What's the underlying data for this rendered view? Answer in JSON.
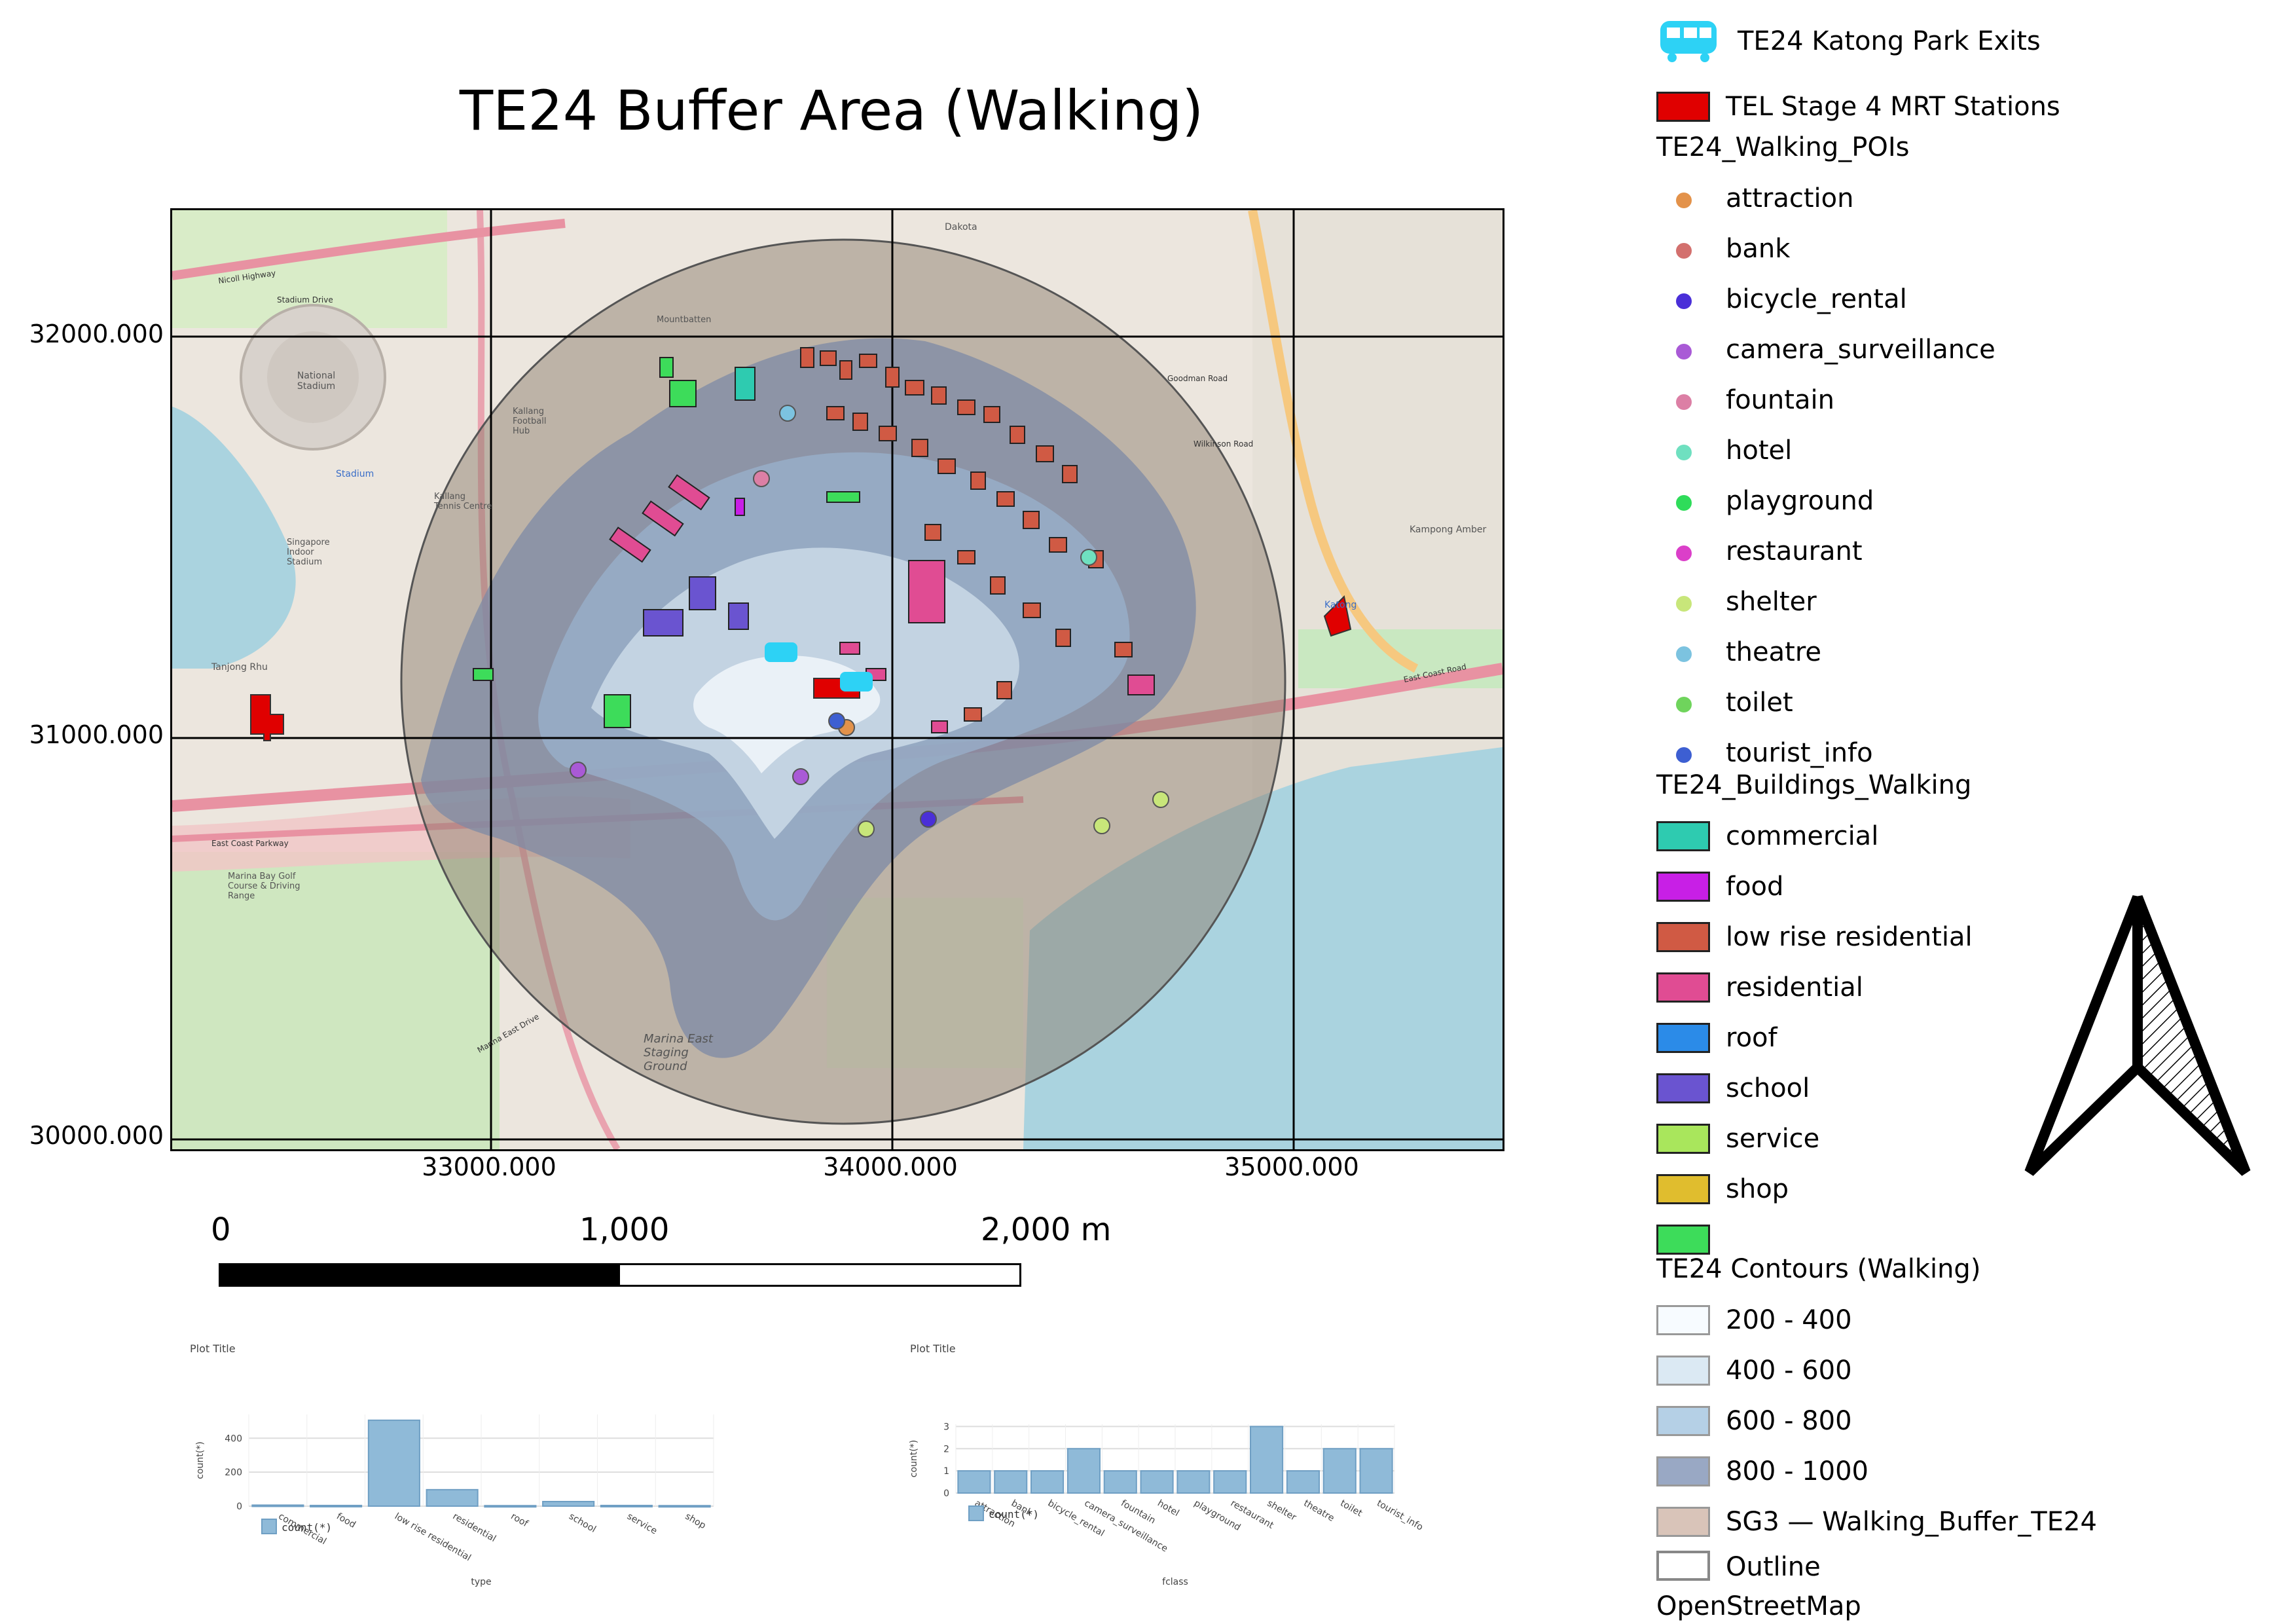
{
  "title": "TE24 Buffer Area (Walking)",
  "map": {
    "y_ticks": [
      "32000.000",
      "31000.000",
      "30000.000"
    ],
    "x_ticks": [
      "33000.000",
      "34000.000",
      "35000.000"
    ],
    "place_labels": {
      "national_stadium": "National Stadium",
      "stadium": "Stadium",
      "singapore_indoor_stadium": "Singapore Indoor Stadium",
      "kallang_football_hub": "Kallang Football Hub",
      "kallang_tennis_centre": "Kallang Tennis Centre",
      "marina_bay_golf": "Marina Bay Golf Course & Driving Range",
      "marina_east_staging": "Marina East Staging Ground",
      "mountbatten": "Mountbatten",
      "dakota": "Dakota",
      "katong": "Katong",
      "kampong_amber": "Kampong Amber",
      "tanjong_rhu": "Tanjong Rhu",
      "nicoll_highway": "Nicoll Highway",
      "stadium_drive": "Stadium Drive",
      "east_coast_parkway": "East Coast Parkway",
      "marina_east_drive": "Marina East Drive",
      "east_coast_road": "East Coast Road",
      "goodman_road": "Goodman Road",
      "wilkinson_road": "Wilkinson Road"
    }
  },
  "scale_bar": {
    "labels": [
      "0",
      "1,000",
      "2,000 m"
    ]
  },
  "plot_left": {
    "title": "Plot Title",
    "ylabel": "count(*)",
    "xlabel": "type",
    "legend": "count(*)",
    "color": "#8fbad8"
  },
  "plot_right": {
    "title": "Plot Title",
    "ylabel": "count(*)",
    "xlabel": "fclass",
    "legend": "count(*)",
    "color": "#8fbad8"
  },
  "chart_data": [
    {
      "type": "bar",
      "title": "Plot Title",
      "xlabel": "type",
      "ylabel": "count(*)",
      "categories": [
        "commercial",
        "food",
        "low rise residential",
        "residential",
        "roof",
        "school",
        "service",
        "shop"
      ],
      "values": [
        6,
        4,
        506,
        97,
        3,
        27,
        4,
        3
      ],
      "y_ticks": [
        0,
        200,
        400
      ],
      "ylim": [
        0,
        540
      ],
      "legend": "count(*)"
    },
    {
      "type": "bar",
      "title": "Plot Title",
      "xlabel": "fclass",
      "ylabel": "count(*)",
      "categories": [
        "attraction",
        "bank",
        "bicycle_rental",
        "camera_surveillance",
        "fountain",
        "hotel",
        "playground",
        "restaurant",
        "shelter",
        "theatre",
        "toilet",
        "tourist_info"
      ],
      "values": [
        1,
        1,
        1,
        2,
        1,
        1,
        1,
        1,
        3,
        1,
        2,
        2
      ],
      "y_ticks": [
        0,
        1,
        2,
        3
      ],
      "ylim": [
        0,
        3.1
      ],
      "legend": "count(*)"
    }
  ],
  "legend": {
    "exits": "TE24 Katong Park Exits",
    "stations": "TEL Stage 4 MRT Stations",
    "pois_heading": "TE24_Walking_POIs",
    "pois": [
      {
        "label": "attraction",
        "color": "#e3924a"
      },
      {
        "label": "bank",
        "color": "#d3706e"
      },
      {
        "label": "bicycle_rental",
        "color": "#4a2fd8"
      },
      {
        "label": "camera_surveillance",
        "color": "#a95ad6"
      },
      {
        "label": "fountain",
        "color": "#dc7fa5"
      },
      {
        "label": "hotel",
        "color": "#6fe0c0"
      },
      {
        "label": "playground",
        "color": "#2fdc5a"
      },
      {
        "label": "restaurant",
        "color": "#db3fc9"
      },
      {
        "label": "shelter",
        "color": "#c8e67a"
      },
      {
        "label": "theatre",
        "color": "#7cc3e0"
      },
      {
        "label": "toilet",
        "color": "#6fd45c"
      },
      {
        "label": "tourist_info",
        "color": "#3d5fd2"
      }
    ],
    "buildings_heading": "TE24_Buildings_Walking",
    "buildings": [
      {
        "label": "commercial",
        "color": "#2ecbb0"
      },
      {
        "label": "food",
        "color": "#c81fe6"
      },
      {
        "label": "low rise residential",
        "color": "#d05a44"
      },
      {
        "label": "residential",
        "color": "#e04c93"
      },
      {
        "label": "roof",
        "color": "#2b8be8"
      },
      {
        "label": "school",
        "color": "#6a54d0"
      },
      {
        "label": "service",
        "color": "#a9e65c"
      },
      {
        "label": "shop",
        "color": "#e0bd2e"
      },
      {
        "label": "",
        "color": "#3ddc5a"
      }
    ],
    "contours_heading": "TE24 Contours (Walking)",
    "contours": [
      {
        "label": "200 - 400",
        "color": "#f7fbff"
      },
      {
        "label": "400 - 600",
        "color": "#dbe9f3"
      },
      {
        "label": "600 - 800",
        "color": "#b5d0e6"
      },
      {
        "label": "800 - 1000",
        "color": "#99a8c4"
      },
      {
        "label": "SG3 — Walking_Buffer_TE24",
        "color": "#d9c4b9"
      }
    ],
    "outline": "Outline",
    "basemap": "OpenStreetMap"
  }
}
